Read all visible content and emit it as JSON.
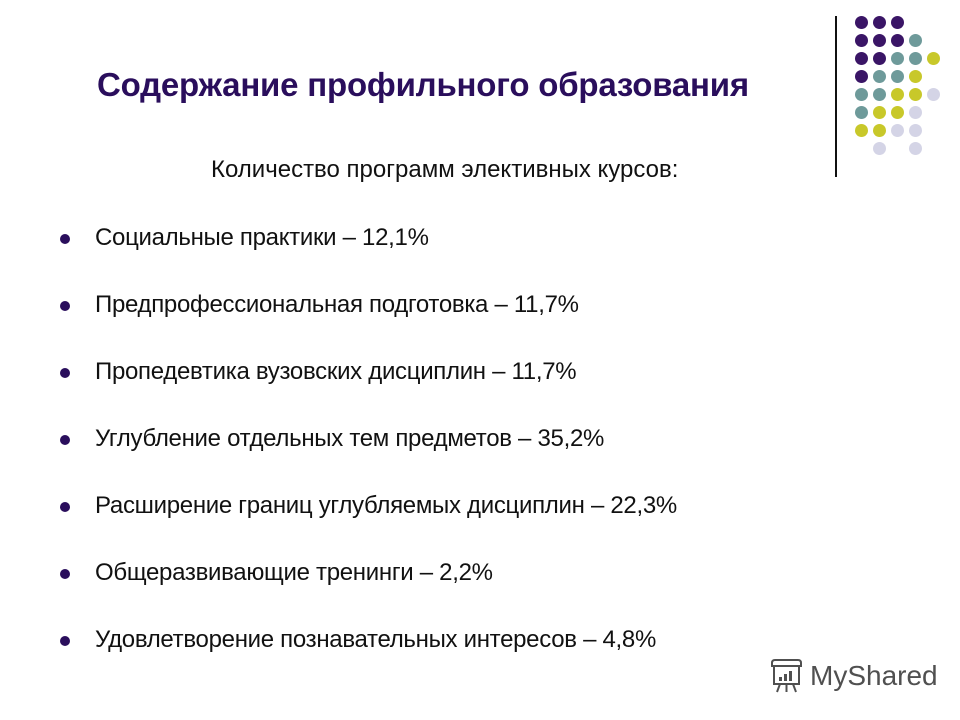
{
  "slide": {
    "title": "Содержание профильного образования",
    "subtitle": "Количество программ элективных курсов:",
    "bullets": [
      {
        "label": "Социальные практики – 12,1%"
      },
      {
        "label": "Предпрофессиональная подготовка – 11,7%"
      },
      {
        "label": "Пропедевтика вузовских дисциплин – 11,7%"
      },
      {
        "label": "Углубление отдельных тем предметов – 35,2%"
      },
      {
        "label": "Расширение границ углубляемых дисциплин – 22,3%"
      },
      {
        "label": "Общеразвивающие тренинги – 2,2%"
      },
      {
        "label": "Удовлетворение познавательных интересов – 4,8%"
      }
    ]
  },
  "decoration": {
    "colors": {
      "purple": "#3a1566",
      "teal": "#6e9a9a",
      "yellow": "#c8c82a",
      "lavender": "#d4d4e6"
    },
    "dot_grid": [
      [
        "P",
        "P",
        "P",
        "-",
        "-"
      ],
      [
        "P",
        "P",
        "P",
        "T",
        "-"
      ],
      [
        "P",
        "P",
        "T",
        "T",
        "Y"
      ],
      [
        "P",
        "T",
        "T",
        "Y",
        "-"
      ],
      [
        "T",
        "T",
        "Y",
        "Y",
        "L"
      ],
      [
        "T",
        "Y",
        "Y",
        "L",
        "-"
      ],
      [
        "Y",
        "Y",
        "L",
        "L",
        "-"
      ],
      [
        "-",
        "L",
        "-",
        "L",
        "-"
      ]
    ]
  },
  "watermark": {
    "icon": "presentation-board-icon",
    "text": "MyShared"
  }
}
